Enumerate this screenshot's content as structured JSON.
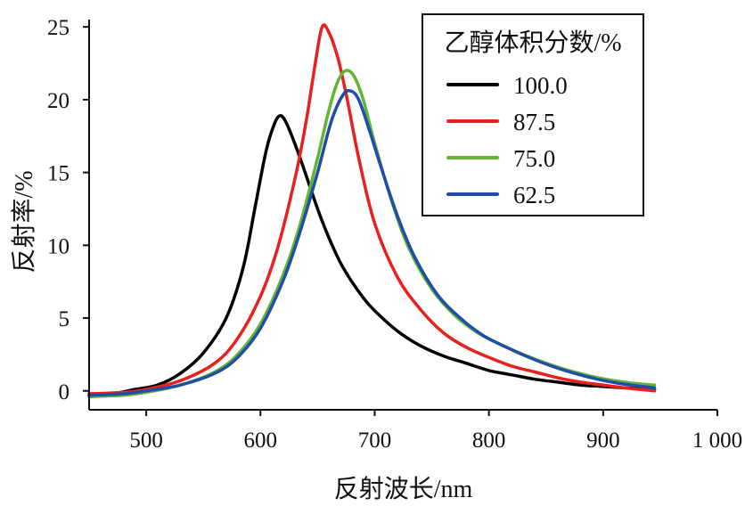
{
  "chart_data": {
    "type": "line",
    "title": "",
    "xlabel": "反射波长/nm",
    "ylabel": "反射率/%",
    "xlim": [
      450,
      1000
    ],
    "ylim": [
      -1.3,
      25.5
    ],
    "x_ticks": [
      500,
      600,
      700,
      800,
      900,
      1000
    ],
    "x_tick_labels": [
      "500",
      "600",
      "700",
      "800",
      "900",
      "1 000"
    ],
    "y_ticks": [
      0,
      5,
      10,
      15,
      20,
      25
    ],
    "y_tick_labels": [
      "0",
      "5",
      "10",
      "15",
      "20",
      "25"
    ],
    "grid": false,
    "legend": {
      "title": "乙醇体积分数/%",
      "position": "top-right"
    },
    "series": [
      {
        "name": "100.0",
        "color": "#000000",
        "points": [
          [
            450,
            -0.3
          ],
          [
            470,
            -0.2
          ],
          [
            490,
            0.1
          ],
          [
            510,
            0.4
          ],
          [
            530,
            1.2
          ],
          [
            550,
            2.6
          ],
          [
            570,
            5.0
          ],
          [
            585,
            8.5
          ],
          [
            595,
            12.5
          ],
          [
            605,
            16.5
          ],
          [
            612,
            18.3
          ],
          [
            617,
            18.9
          ],
          [
            622,
            18.5
          ],
          [
            630,
            17.0
          ],
          [
            640,
            14.8
          ],
          [
            650,
            12.5
          ],
          [
            660,
            10.5
          ],
          [
            670,
            8.8
          ],
          [
            680,
            7.5
          ],
          [
            690,
            6.4
          ],
          [
            700,
            5.5
          ],
          [
            720,
            4.1
          ],
          [
            740,
            3.1
          ],
          [
            760,
            2.4
          ],
          [
            780,
            1.9
          ],
          [
            800,
            1.4
          ],
          [
            820,
            1.1
          ],
          [
            840,
            0.8
          ],
          [
            860,
            0.6
          ],
          [
            880,
            0.4
          ],
          [
            900,
            0.3
          ],
          [
            920,
            0.2
          ],
          [
            945,
            0.1
          ]
        ]
      },
      {
        "name": "87.5",
        "color": "#e8211e",
        "points": [
          [
            450,
            -0.2
          ],
          [
            480,
            -0.1
          ],
          [
            500,
            0.1
          ],
          [
            530,
            0.7
          ],
          [
            560,
            1.9
          ],
          [
            580,
            3.6
          ],
          [
            600,
            6.5
          ],
          [
            615,
            9.8
          ],
          [
            630,
            14.5
          ],
          [
            640,
            18.5
          ],
          [
            648,
            22.5
          ],
          [
            654,
            25.0
          ],
          [
            660,
            24.6
          ],
          [
            668,
            22.8
          ],
          [
            676,
            20.0
          ],
          [
            686,
            16.0
          ],
          [
            700,
            11.5
          ],
          [
            720,
            7.8
          ],
          [
            740,
            5.6
          ],
          [
            760,
            4.0
          ],
          [
            780,
            3.0
          ],
          [
            800,
            2.3
          ],
          [
            820,
            1.7
          ],
          [
            840,
            1.3
          ],
          [
            860,
            0.9
          ],
          [
            880,
            0.6
          ],
          [
            900,
            0.4
          ],
          [
            920,
            0.2
          ],
          [
            945,
            0.0
          ]
        ]
      },
      {
        "name": "75.0",
        "color": "#62b436",
        "points": [
          [
            450,
            -0.4
          ],
          [
            480,
            -0.3
          ],
          [
            500,
            -0.1
          ],
          [
            530,
            0.4
          ],
          [
            560,
            1.3
          ],
          [
            580,
            2.5
          ],
          [
            600,
            4.6
          ],
          [
            620,
            8.0
          ],
          [
            635,
            11.5
          ],
          [
            650,
            16.0
          ],
          [
            660,
            19.3
          ],
          [
            668,
            21.3
          ],
          [
            675,
            22.0
          ],
          [
            682,
            21.6
          ],
          [
            690,
            20.0
          ],
          [
            700,
            17.0
          ],
          [
            715,
            13.0
          ],
          [
            730,
            9.8
          ],
          [
            750,
            7.0
          ],
          [
            770,
            5.2
          ],
          [
            790,
            4.0
          ],
          [
            810,
            3.2
          ],
          [
            830,
            2.5
          ],
          [
            850,
            1.9
          ],
          [
            870,
            1.4
          ],
          [
            890,
            1.0
          ],
          [
            910,
            0.7
          ],
          [
            930,
            0.5
          ],
          [
            945,
            0.4
          ]
        ]
      },
      {
        "name": "62.5",
        "color": "#1f4da8",
        "points": [
          [
            450,
            -0.3
          ],
          [
            480,
            -0.2
          ],
          [
            500,
            0.0
          ],
          [
            530,
            0.4
          ],
          [
            560,
            1.2
          ],
          [
            580,
            2.3
          ],
          [
            600,
            4.3
          ],
          [
            620,
            7.6
          ],
          [
            635,
            11.0
          ],
          [
            650,
            15.0
          ],
          [
            662,
            18.5
          ],
          [
            672,
            20.3
          ],
          [
            679,
            20.6
          ],
          [
            686,
            20.0
          ],
          [
            695,
            18.0
          ],
          [
            705,
            15.5
          ],
          [
            720,
            12.0
          ],
          [
            735,
            9.2
          ],
          [
            755,
            6.6
          ],
          [
            775,
            5.0
          ],
          [
            795,
            3.8
          ],
          [
            815,
            3.0
          ],
          [
            835,
            2.3
          ],
          [
            855,
            1.7
          ],
          [
            875,
            1.2
          ],
          [
            895,
            0.8
          ],
          [
            915,
            0.5
          ],
          [
            935,
            0.3
          ],
          [
            945,
            0.2
          ]
        ]
      }
    ]
  }
}
